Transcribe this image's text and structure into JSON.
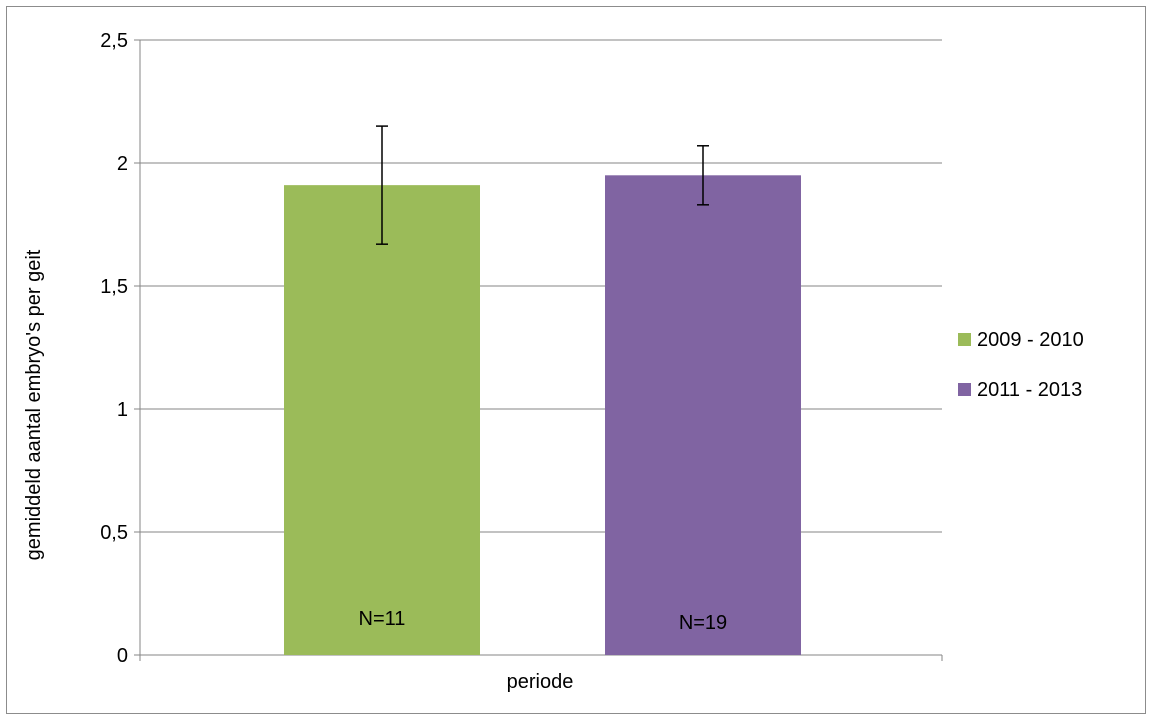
{
  "chart_data": {
    "type": "bar",
    "title": "",
    "xlabel": "periode",
    "ylabel": "gemiddeld aantal embryo's per geit",
    "ylim": [
      0,
      2.5
    ],
    "yticks": [
      {
        "value": 0,
        "label": "0"
      },
      {
        "value": 0.5,
        "label": "0,5"
      },
      {
        "value": 1,
        "label": "1"
      },
      {
        "value": 1.5,
        "label": "1,5"
      },
      {
        "value": 2,
        "label": "2"
      },
      {
        "value": 2.5,
        "label": "2,5"
      }
    ],
    "grid": true,
    "legend_position": "right",
    "series": [
      {
        "name": "2009 - 2010",
        "value": 1.91,
        "error": 0.24,
        "label": "N=11",
        "color": "#9bbb59"
      },
      {
        "name": "2011 - 2013",
        "value": 1.95,
        "error": 0.12,
        "label": "N=19",
        "color": "#8064a2"
      }
    ]
  }
}
